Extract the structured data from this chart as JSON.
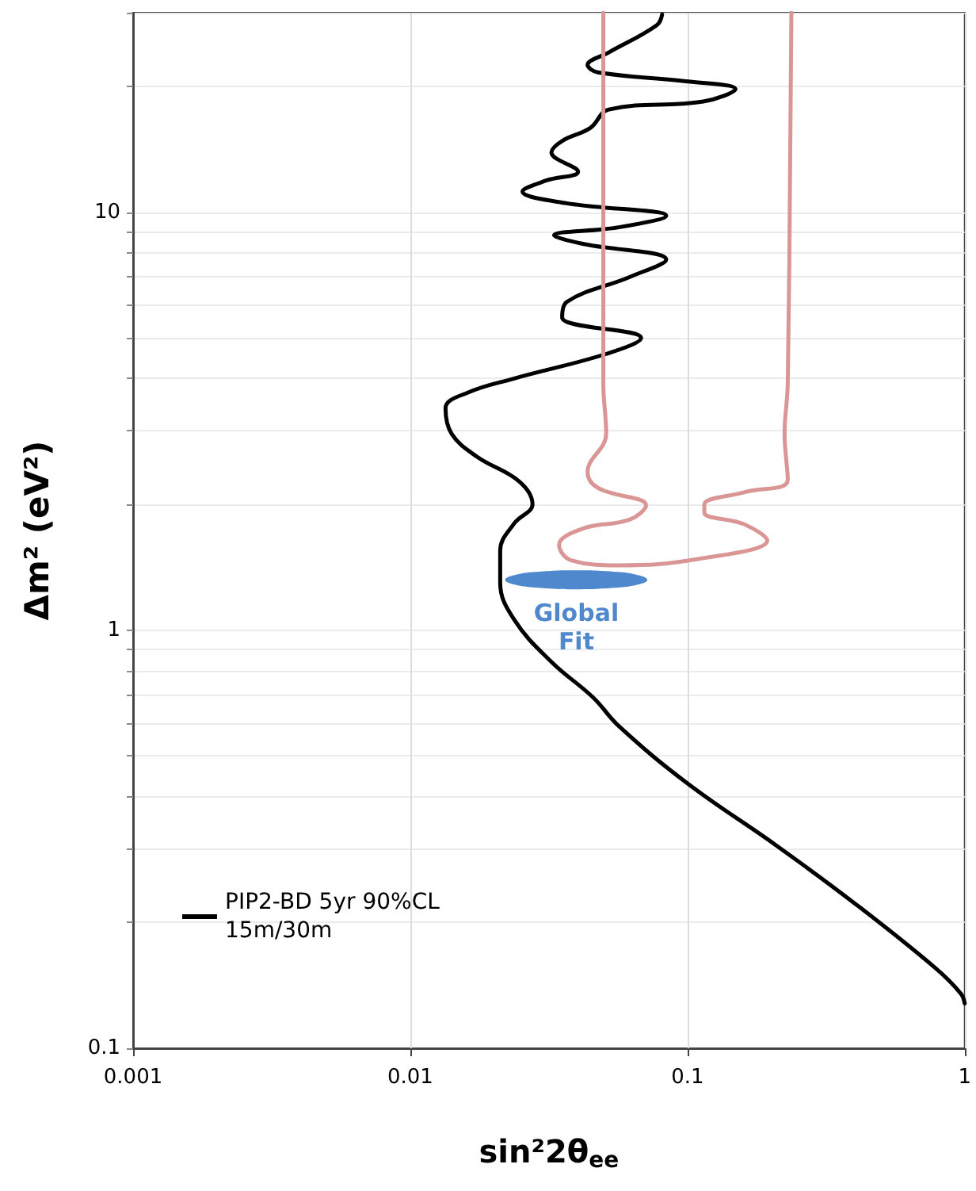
{
  "chart_data": {
    "type": "line",
    "xlabel": "sin²2θ$_{ee}$",
    "ylabel": "Δm² (eV²)",
    "log": "xy",
    "xlim": [
      0.001,
      1
    ],
    "xticks": [
      0.001,
      0.01,
      0.1,
      1
    ],
    "ylim": [
      0.1,
      30
    ],
    "yticks": [
      0.1,
      {
        "value": 0.2,
        "label": null
      },
      {
        "value": 0.3,
        "label": null
      },
      {
        "value": 0.4,
        "label": null
      },
      {
        "value": 0.5,
        "label": null
      },
      {
        "value": 0.6,
        "label": null
      },
      {
        "value": 0.7,
        "label": null
      },
      {
        "value": 0.8,
        "label": null
      },
      {
        "value": 0.9,
        "label": null
      },
      1,
      {
        "value": 2,
        "label": null
      },
      {
        "value": 3,
        "label": null
      },
      {
        "value": 4,
        "label": null
      },
      {
        "value": 5,
        "label": null
      },
      {
        "value": 6,
        "label": null
      },
      {
        "value": 7,
        "label": null
      },
      {
        "value": 8,
        "label": null
      },
      {
        "value": 9,
        "label": null
      },
      10,
      {
        "value": 20,
        "label": null
      },
      {
        "value": 30,
        "label": null
      }
    ],
    "grid": true,
    "legend": "bottom left",
    "marker": "none",
    "line_style": "solid",
    "series": [
      {
        "name": "PIP2-BD 5yr 90%CL 15m/30m",
        "color": "#000000",
        "x": [
          0.081,
          0.0775,
          0.052,
          0.0436,
          0.0475,
          0.0955,
          0.149,
          0.114,
          0.052,
          0.0446,
          0.0353,
          0.0323,
          0.0403,
          0.0309,
          0.0254,
          0.0367,
          0.0838,
          0.0565,
          0.033,
          0.0419,
          0.0838,
          0.062,
          0.0367,
          0.0353,
          0.068,
          0.052,
          0.0237,
          0.0161,
          0.0134,
          0.0141,
          0.0174,
          0.0247,
          0.0276,
          0.0237,
          0.0211,
          0.0211,
          0.0237,
          0.0323,
          0.0457,
          0.0565,
          0.1,
          0.21,
          0.405,
          0.78,
          0.97,
          1.0
        ],
        "values": [
          29.7,
          28.0,
          24.1,
          22.5,
          21.6,
          20.6,
          19.7,
          18.4,
          17.6,
          15.9,
          14.8,
          13.9,
          12.5,
          11.9,
          11.2,
          10.5,
          9.8,
          9.2,
          8.8,
          8.4,
          7.7,
          7.0,
          6.1,
          5.6,
          5.0,
          4.6,
          4.0,
          3.7,
          3.4,
          2.95,
          2.6,
          2.27,
          2.0,
          1.8,
          1.55,
          1.3,
          1.06,
          0.84,
          0.69,
          0.59,
          0.43,
          0.305,
          0.221,
          0.156,
          0.135,
          0.128
        ]
      },
      {
        "color": "#d99694",
        "x": [
          0.0497,
          0.0497,
          0.0509,
          0.0436,
          0.0475,
          0.0709,
          0.062,
          0.0419,
          0.0344,
          0.038,
          0.0565,
          0.109,
          0.194,
          0.161,
          0.115,
          0.115,
          0.161,
          0.23,
          0.224,
          0.23,
          0.237
        ],
        "values": [
          30,
          3.9,
          2.95,
          2.39,
          2.19,
          1.99,
          1.84,
          1.75,
          1.6,
          1.47,
          1.43,
          1.48,
          1.64,
          1.79,
          1.91,
          2.0,
          2.14,
          2.29,
          2.95,
          3.9,
          30
        ]
      },
      {
        "name": "Global Fit",
        "type": "area",
        "color": "#4f88cc",
        "x": [
          0.0716,
          0.0662,
          0.0533,
          0.0397,
          0.0296,
          0.0238,
          0.022,
          0.0238,
          0.0296,
          0.0397,
          0.0533,
          0.0662
        ],
        "values": [
          1.32,
          1.355,
          1.381,
          1.391,
          1.381,
          1.355,
          1.32,
          1.286,
          1.262,
          1.253,
          1.262,
          1.286
        ]
      }
    ]
  }
}
